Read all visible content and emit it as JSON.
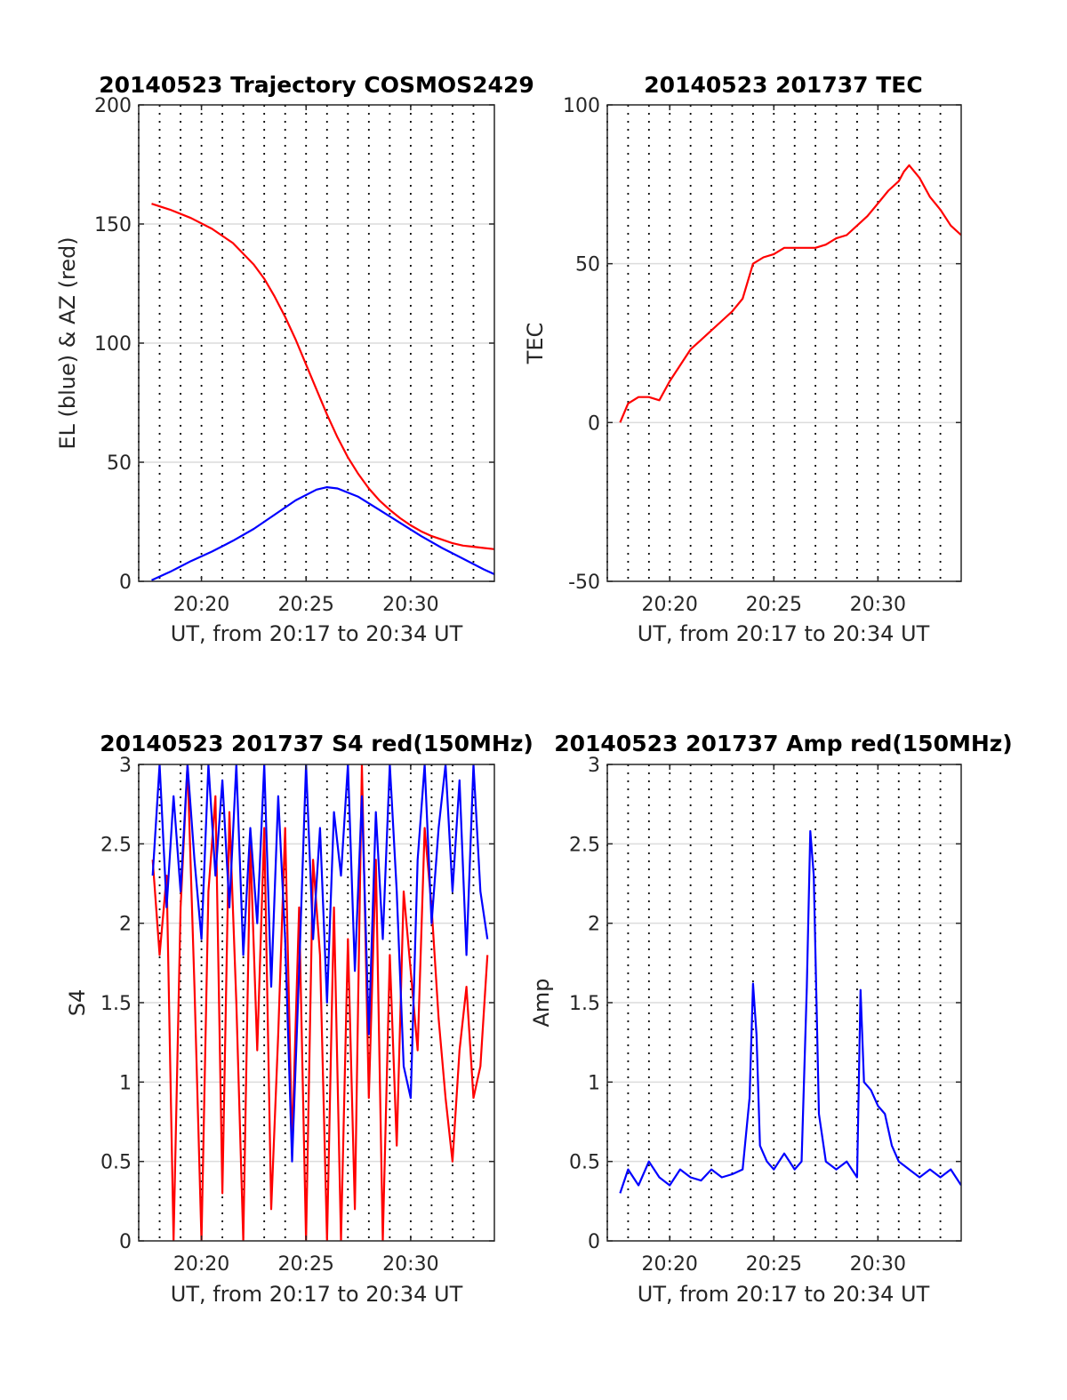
{
  "figure": {
    "background": "#ffffff",
    "colors": {
      "red": "#ff0000",
      "blue": "#0000ff",
      "axis": "#262626",
      "grid": "#dcdcdc",
      "vline": "#000000"
    }
  },
  "chart_data": [
    {
      "type": "line",
      "title": "20140523 Trajectory COSMOS2429",
      "xlabel": "UT, from 20:17 to 20:34 UT",
      "ylabel": "EL (blue) & AZ (red)",
      "xlim": [
        "20:17",
        "20:34"
      ],
      "ylim": [
        0,
        200
      ],
      "xticks": [
        "20:20",
        "20:25",
        "20:30"
      ],
      "yticks": [
        0,
        50,
        100,
        150,
        200
      ],
      "grid": "horizontal major gridlines, dotted vertical lines every minute",
      "series": [
        {
          "color": "#0000ff",
          "x": [
            "20:17:37",
            "20:18:30",
            "20:19:30",
            "20:20:30",
            "20:21:30",
            "20:22:30",
            "20:23:30",
            "20:24:30",
            "20:25:30",
            "20:26:00",
            "20:26:30",
            "20:27:30",
            "20:28:30",
            "20:29:30",
            "20:30:30",
            "20:31:30",
            "20:32:30",
            "20:33:30",
            "20:34:00"
          ],
          "y": [
            0.5,
            4,
            8.5,
            12.5,
            17,
            22,
            28,
            34,
            38.5,
            39.5,
            39,
            35.5,
            30,
            24.5,
            19,
            14,
            9.5,
            5,
            3
          ]
        },
        {
          "color": "#ff0000",
          "x": [
            "20:17:37",
            "20:18:30",
            "20:19:30",
            "20:20:30",
            "20:21:30",
            "20:22:30",
            "20:23:00",
            "20:23:30",
            "20:24:00",
            "20:24:30",
            "20:25:00",
            "20:25:30",
            "20:26:00",
            "20:26:30",
            "20:27:00",
            "20:27:30",
            "20:28:00",
            "20:28:30",
            "20:29:00",
            "20:29:30",
            "20:30:00",
            "20:30:30",
            "20:31:00",
            "20:31:30",
            "20:32:00",
            "20:32:30",
            "20:33:00",
            "20:33:30",
            "20:34:00"
          ],
          "y": [
            158.5,
            156,
            152.5,
            148,
            142,
            133,
            127,
            119.5,
            111,
            101.5,
            91,
            80.5,
            70,
            60.5,
            52,
            45,
            39,
            34,
            30,
            26.5,
            23.5,
            21,
            19,
            17.5,
            16,
            15,
            14.5,
            14,
            13.5
          ]
        }
      ]
    },
    {
      "type": "line",
      "title": "20140523 201737 TEC",
      "xlabel": "UT, from 20:17 to 20:34 UT",
      "ylabel": "TEC",
      "xlim": [
        "20:17",
        "20:34"
      ],
      "ylim": [
        -50,
        100
      ],
      "xticks": [
        "20:20",
        "20:25",
        "20:30"
      ],
      "yticks": [
        -50,
        0,
        50,
        100
      ],
      "grid": "horizontal major gridlines, dotted vertical lines every minute",
      "series": [
        {
          "color": "#ff0000",
          "x": [
            "20:17:37",
            "20:18:00",
            "20:18:30",
            "20:19:00",
            "20:19:30",
            "20:20:00",
            "20:20:30",
            "20:21:00",
            "20:21:30",
            "20:22:00",
            "20:22:30",
            "20:23:00",
            "20:23:30",
            "20:24:00",
            "20:24:30",
            "20:25:00",
            "20:25:30",
            "20:26:00",
            "20:26:30",
            "20:27:00",
            "20:27:30",
            "20:28:00",
            "20:28:30",
            "20:29:00",
            "20:29:30",
            "20:30:00",
            "20:30:30",
            "20:31:00",
            "20:31:15",
            "20:31:30",
            "20:32:00",
            "20:32:30",
            "20:33:00",
            "20:33:30",
            "20:34:00"
          ],
          "y": [
            0,
            6,
            8,
            8,
            7,
            13,
            18,
            23,
            26,
            29,
            32,
            35,
            39,
            50,
            52,
            53,
            55,
            55,
            55,
            55,
            56,
            58,
            59,
            62,
            65,
            69,
            73,
            76,
            79,
            81,
            77,
            71,
            67,
            62,
            59
          ]
        }
      ]
    },
    {
      "type": "line",
      "title": "20140523 201737 S4 red(150MHz)",
      "xlabel": "UT, from 20:17 to 20:34 UT",
      "ylabel": "S4",
      "xlim": [
        "20:17",
        "20:34"
      ],
      "ylim": [
        0,
        3
      ],
      "xticks": [
        "20:20",
        "20:25",
        "20:30"
      ],
      "yticks": [
        0,
        0.5,
        1,
        1.5,
        2,
        2.5,
        3
      ],
      "grid": "horizontal major gridlines, dotted vertical lines every minute",
      "series": [
        {
          "color": "#ff0000",
          "x": [
            "20:17:40",
            "20:18:00",
            "20:18:20",
            "20:18:40",
            "20:19:00",
            "20:19:20",
            "20:19:40",
            "20:20:00",
            "20:20:20",
            "20:20:40",
            "20:21:00",
            "20:21:20",
            "20:21:40",
            "20:22:00",
            "20:22:20",
            "20:22:40",
            "20:23:00",
            "20:23:20",
            "20:23:40",
            "20:24:00",
            "20:24:20",
            "20:24:40",
            "20:25:00",
            "20:25:20",
            "20:25:40",
            "20:26:00",
            "20:26:20",
            "20:26:40",
            "20:27:00",
            "20:27:20",
            "20:27:40",
            "20:28:00",
            "20:28:20",
            "20:28:40",
            "20:29:00",
            "20:29:20",
            "20:29:40",
            "20:30:00",
            "20:30:20",
            "20:30:40",
            "20:31:00",
            "20:31:20",
            "20:31:40",
            "20:32:00",
            "20:32:20",
            "20:32:40",
            "20:33:00",
            "20:33:20",
            "20:33:40"
          ],
          "y": [
            2.4,
            1.8,
            2.3,
            0,
            2.1,
            3,
            1.6,
            0,
            2.2,
            2.8,
            0.3,
            2.7,
            1.5,
            0,
            2.5,
            1.2,
            2.6,
            0.2,
            1.3,
            2.6,
            0.6,
            2.1,
            0,
            2.4,
            1.8,
            0,
            2.1,
            0,
            1.9,
            0.2,
            3,
            0.9,
            2.4,
            0,
            1.8,
            0.6,
            2.2,
            1.7,
            1.2,
            2.6,
            2.1,
            1.4,
            0.9,
            0.5,
            1.2,
            1.6,
            0.9,
            1.1,
            1.8
          ]
        },
        {
          "color": "#0000ff",
          "x": [
            "20:17:40",
            "20:18:00",
            "20:18:20",
            "20:18:40",
            "20:19:00",
            "20:19:20",
            "20:19:40",
            "20:20:00",
            "20:20:20",
            "20:20:40",
            "20:21:00",
            "20:21:20",
            "20:21:40",
            "20:22:00",
            "20:22:20",
            "20:22:40",
            "20:23:00",
            "20:23:20",
            "20:23:40",
            "20:24:00",
            "20:24:20",
            "20:24:40",
            "20:25:00",
            "20:25:20",
            "20:25:40",
            "20:26:00",
            "20:26:20",
            "20:26:40",
            "20:27:00",
            "20:27:20",
            "20:27:40",
            "20:28:00",
            "20:28:20",
            "20:28:40",
            "20:29:00",
            "20:29:20",
            "20:29:40",
            "20:30:00",
            "20:30:20",
            "20:30:40",
            "20:31:00",
            "20:31:20",
            "20:31:40",
            "20:32:00",
            "20:32:20",
            "20:32:40",
            "20:33:00",
            "20:33:20",
            "20:33:40"
          ],
          "y": [
            2.3,
            3,
            2.1,
            2.8,
            2.2,
            3,
            2.4,
            1.9,
            3,
            2.3,
            2.9,
            2.1,
            3,
            1.8,
            2.6,
            2,
            3,
            1.6,
            2.8,
            1.9,
            0.5,
            1.7,
            3,
            1.9,
            2.6,
            1.5,
            2.7,
            2.3,
            3,
            1.7,
            2.8,
            1.3,
            2.7,
            1.9,
            3,
            2.2,
            1.1,
            0.9,
            2.4,
            3,
            2,
            2.6,
            3,
            2.2,
            2.9,
            1.8,
            3,
            2.2,
            1.9
          ]
        }
      ]
    },
    {
      "type": "line",
      "title": "20140523 201737 Amp red(150MHz)",
      "xlabel": "UT, from 20:17 to 20:34 UT",
      "ylabel": "Amp",
      "xlim": [
        "20:17",
        "20:34"
      ],
      "ylim": [
        0,
        3
      ],
      "xticks": [
        "20:20",
        "20:25",
        "20:30"
      ],
      "yticks": [
        0,
        0.5,
        1,
        1.5,
        2,
        2.5,
        3
      ],
      "grid": "horizontal major gridlines, dotted vertical lines every minute",
      "series": [
        {
          "color": "#0000ff",
          "x": [
            "20:17:37",
            "20:18:00",
            "20:18:30",
            "20:19:00",
            "20:19:30",
            "20:20:00",
            "20:20:30",
            "20:21:00",
            "20:21:30",
            "20:22:00",
            "20:22:30",
            "20:23:00",
            "20:23:30",
            "20:23:50",
            "20:24:00",
            "20:24:10",
            "20:24:20",
            "20:24:40",
            "20:25:00",
            "20:25:30",
            "20:26:00",
            "20:26:20",
            "20:26:35",
            "20:26:45",
            "20:26:55",
            "20:27:10",
            "20:27:30",
            "20:28:00",
            "20:28:30",
            "20:29:00",
            "20:29:10",
            "20:29:20",
            "20:29:40",
            "20:30:00",
            "20:30:20",
            "20:30:40",
            "20:31:00",
            "20:31:30",
            "20:32:00",
            "20:32:30",
            "20:33:00",
            "20:33:30",
            "20:34:00"
          ],
          "y": [
            0.3,
            0.45,
            0.35,
            0.5,
            0.4,
            0.35,
            0.45,
            0.4,
            0.38,
            0.45,
            0.4,
            0.42,
            0.45,
            0.9,
            1.62,
            1.3,
            0.6,
            0.5,
            0.45,
            0.55,
            0.45,
            0.5,
            1.6,
            2.58,
            2.3,
            0.8,
            0.5,
            0.45,
            0.5,
            0.4,
            1.58,
            1.0,
            0.95,
            0.85,
            0.8,
            0.6,
            0.5,
            0.45,
            0.4,
            0.45,
            0.4,
            0.45,
            0.35
          ]
        }
      ]
    }
  ]
}
